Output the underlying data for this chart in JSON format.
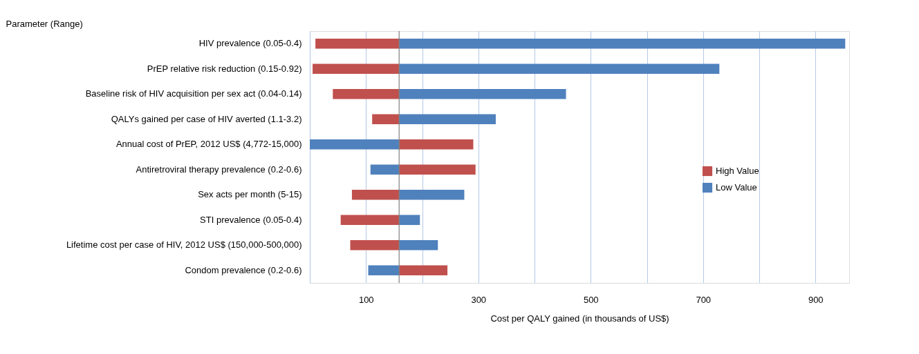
{
  "chart_data": {
    "type": "bar",
    "orientation": "horizontal",
    "ylabel": "Parameter (Range)",
    "xlabel": "Cost per QALY gained (in thousands of US$)",
    "categories": [
      "HIV prevalence (0.05-0.4)",
      "PrEP relative risk reduction (0.15-0.92)",
      "Baseline risk of HIV acquisition per sex act (0.04-0.14)",
      "QALYs gained per case of HIV averted (1.1-3.2)",
      "Annual cost of PrEP, 2012 US$ (4,772-15,000)",
      "Antiretroviral therapy prevalence (0.2-0.6)",
      "Sex acts per month (5-15)",
      "STI prevalence (0.05-0.4)",
      "Lifetime cost per case of HIV, 2012 US$ (150,000-500,000)",
      "Condom prevalence (0.2-0.6)"
    ],
    "series": [
      {
        "name": "High Value",
        "color": "#c0504d",
        "base": [
          159,
          159,
          159,
          159,
          159,
          159,
          159,
          159,
          159,
          159
        ],
        "values": [
          -149,
          -154,
          -118,
          -48,
          132,
          136,
          -84,
          -104,
          -87,
          86
        ]
      },
      {
        "name": "Low Value",
        "color": "#4f81bd",
        "base": [
          159,
          159,
          159,
          159,
          159,
          159,
          159,
          159,
          159,
          159
        ],
        "values": [
          794,
          570,
          297,
          172,
          -159,
          -51,
          116,
          37,
          69,
          -55
        ]
      }
    ],
    "xlim": [
      0,
      960
    ],
    "xticks": [
      {
        "value": 0,
        "label": null
      },
      100,
      {
        "value": 200,
        "label": null
      },
      300,
      {
        "value": 400,
        "label": null
      },
      500,
      {
        "value": 600,
        "label": null
      },
      700,
      {
        "value": 800,
        "label": null
      },
      900
    ],
    "ref_lines": [
      {
        "axis": "x",
        "value": 159,
        "color": "#7f7f7f"
      }
    ],
    "grid": "x",
    "legend": "bottom right"
  }
}
